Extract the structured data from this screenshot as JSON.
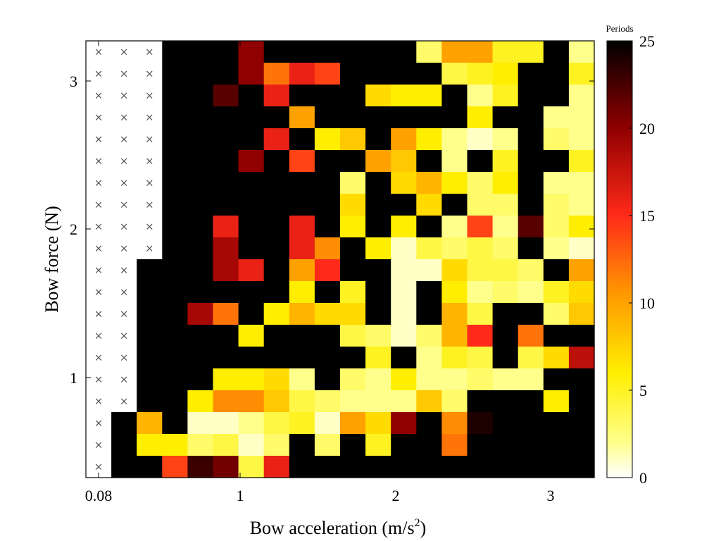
{
  "chart_data": {
    "type": "heatmap",
    "xlabel": "Bow acceleration (m/s",
    "xlabel_superscript": "2",
    "xlabel_suffix": ")",
    "ylabel": "Bow force (N)",
    "x_ticks": [
      "0.08",
      "1",
      "2",
      "3"
    ],
    "y_ticks": [
      "1",
      "2",
      "3"
    ],
    "colorbar": {
      "title": "Periods",
      "min": 0,
      "max": 25,
      "ticks": [
        "0",
        "5",
        "10",
        "15",
        "20",
        "25"
      ],
      "colormap": "reverse-hot (white-yellow-orange-red-black)"
    },
    "no_data_marker": "×",
    "grid": {
      "rows": 20,
      "cols": 20,
      "row_order": "top-to-bottom"
    },
    "values": [
      [
        "x",
        "x",
        "x",
        25,
        25,
        25,
        20,
        25,
        25,
        25,
        25,
        25,
        25,
        3,
        10,
        10,
        5,
        5,
        25,
        2
      ],
      [
        "x",
        "x",
        "x",
        25,
        25,
        25,
        20,
        12,
        16,
        14,
        25,
        25,
        25,
        25,
        4,
        5,
        6,
        25,
        25,
        5
      ],
      [
        "x",
        "x",
        "x",
        25,
        25,
        22,
        25,
        16,
        25,
        25,
        25,
        7,
        6,
        6,
        25,
        2,
        5,
        25,
        25,
        2
      ],
      [
        "x",
        "x",
        "x",
        25,
        25,
        25,
        25,
        25,
        10,
        25,
        25,
        25,
        25,
        25,
        25,
        6,
        25,
        25,
        2,
        2
      ],
      [
        "x",
        "x",
        "x",
        25,
        25,
        25,
        25,
        16,
        25,
        6,
        8,
        25,
        10,
        6,
        2,
        1,
        2,
        25,
        3,
        2
      ],
      [
        "x",
        "x",
        "x",
        25,
        25,
        25,
        20,
        25,
        14,
        25,
        25,
        10,
        8,
        25,
        2,
        25,
        5,
        25,
        25,
        5
      ],
      [
        "x",
        "x",
        "x",
        25,
        25,
        25,
        25,
        25,
        25,
        25,
        3,
        25,
        7,
        9,
        6,
        3,
        6,
        25,
        2,
        2
      ],
      [
        "x",
        "x",
        "x",
        25,
        25,
        25,
        25,
        25,
        25,
        25,
        7,
        25,
        25,
        7,
        25,
        3,
        3,
        25,
        3,
        2
      ],
      [
        "x",
        "x",
        "x",
        25,
        25,
        16,
        25,
        25,
        16,
        25,
        6,
        25,
        6,
        25,
        2,
        14,
        2,
        22,
        3,
        6
      ],
      [
        "x",
        "x",
        "x",
        25,
        25,
        19,
        25,
        25,
        16,
        11,
        25,
        6,
        1,
        4,
        3,
        4,
        3,
        25,
        2,
        1
      ],
      [
        "x",
        "x",
        25,
        25,
        25,
        19,
        16,
        25,
        10,
        15,
        25,
        25,
        1,
        1,
        7,
        4,
        4,
        3,
        25,
        10
      ],
      [
        "x",
        "x",
        25,
        25,
        25,
        25,
        25,
        25,
        6,
        25,
        5,
        25,
        1,
        25,
        6,
        2,
        3,
        2,
        5,
        7
      ],
      [
        "x",
        "x",
        25,
        25,
        19,
        12,
        25,
        6,
        9,
        7,
        7,
        25,
        1,
        25,
        9,
        4,
        25,
        25,
        3,
        8
      ],
      [
        "x",
        "x",
        25,
        25,
        25,
        25,
        6,
        25,
        25,
        25,
        4,
        3,
        1,
        3,
        9,
        15,
        25,
        12,
        25,
        25
      ],
      [
        "x",
        "x",
        25,
        25,
        25,
        25,
        25,
        25,
        25,
        25,
        25,
        5,
        25,
        2,
        5,
        4,
        25,
        4,
        7,
        18
      ],
      [
        "x",
        "x",
        25,
        25,
        25,
        6,
        6,
        7,
        2,
        25,
        3,
        2,
        6,
        2,
        2,
        3,
        2,
        2,
        25,
        25
      ],
      [
        "x",
        "x",
        25,
        25,
        6,
        11,
        11,
        8,
        4,
        3,
        2,
        2,
        2,
        8,
        3,
        25,
        25,
        25,
        6,
        25
      ],
      [
        "x",
        25,
        9,
        25,
        1,
        1,
        2,
        4,
        5,
        1,
        10,
        7,
        20,
        25,
        11,
        24,
        25,
        25,
        25,
        25
      ],
      [
        "x",
        25,
        6,
        6,
        3,
        4,
        1,
        3,
        25,
        3,
        25,
        5,
        25,
        25,
        12,
        25,
        25,
        25,
        25,
        25
      ],
      [
        "x",
        25,
        25,
        14,
        23,
        21,
        4,
        16,
        25,
        25,
        25,
        25,
        25,
        25,
        25,
        25,
        25,
        25,
        25,
        25
      ]
    ]
  }
}
